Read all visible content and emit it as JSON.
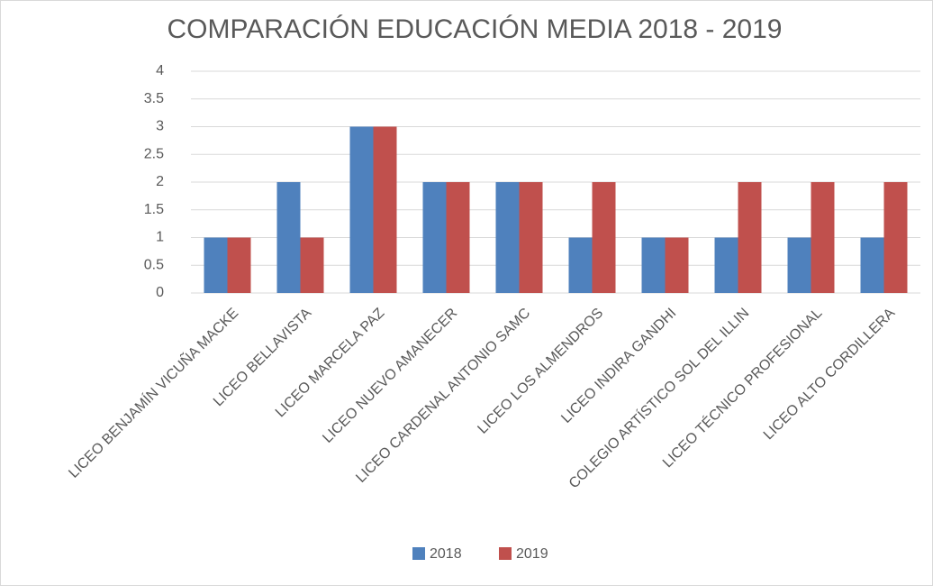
{
  "chart_data": {
    "type": "bar",
    "title": "COMPARACIÓN EDUCACIÓN MEDIA 2018 - 2019",
    "categories": [
      "LICEO BENJAMÍN VICUÑA MACKE",
      "LICEO BELLAVISTA",
      "LICEO MARCELA PAZ",
      "LICEO NUEVO AMANECER",
      "LICEO CARDENAL ANTONIO SAMC",
      "LICEO LOS ALMENDROS",
      "LICEO INDIRA GANDHI",
      "COLEGIO ARTÍSTICO SOL DEL ILLIN",
      "LICEO TÉCNICO PROFESIONAL",
      "LICEO ALTO CORDILLERA"
    ],
    "series": [
      {
        "name": "2018",
        "color": "#4f81bd",
        "values": [
          1,
          2,
          3,
          2,
          2,
          1,
          1,
          1,
          1,
          1
        ]
      },
      {
        "name": "2019",
        "color": "#c0504d",
        "values": [
          1,
          1,
          3,
          2,
          2,
          2,
          1,
          2,
          2,
          2
        ]
      }
    ],
    "ylim": [
      0,
      4
    ],
    "yticks": [
      0,
      0.5,
      1,
      1.5,
      2,
      2.5,
      3,
      3.5,
      4
    ],
    "grid": true,
    "legend": "bottom"
  }
}
